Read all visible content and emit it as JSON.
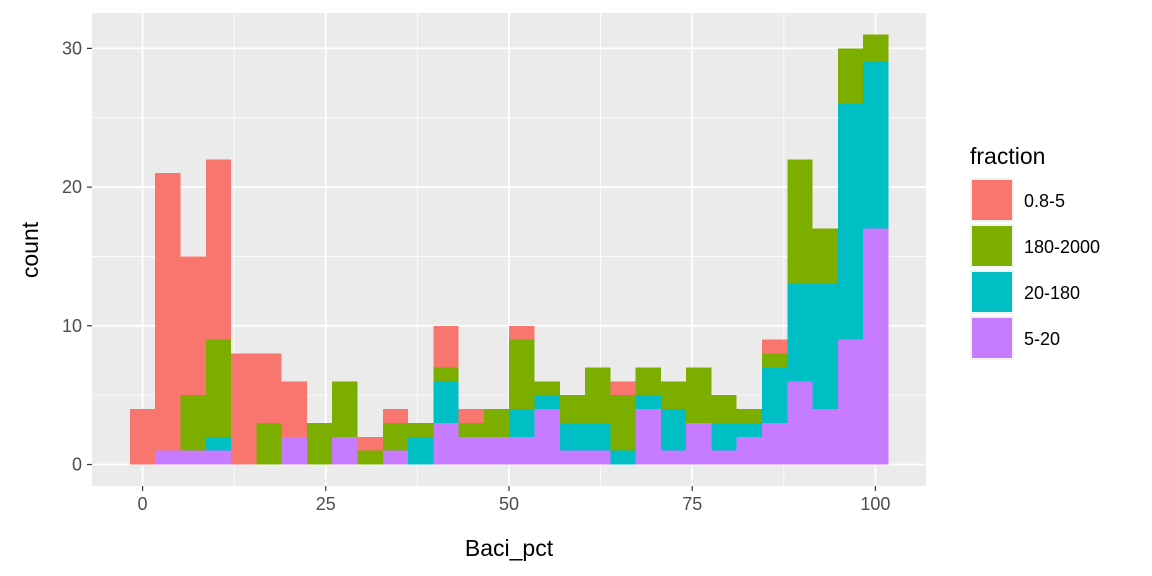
{
  "chart_data": {
    "type": "bar",
    "stacked": true,
    "xlabel": "Baci_pct",
    "ylabel": "count",
    "xlim": [
      -6.9,
      106.9
    ],
    "ylim": [
      -1.55,
      32.55
    ],
    "x_ticks": [
      0,
      25,
      50,
      75,
      100
    ],
    "y_ticks": [
      0,
      10,
      20,
      30
    ],
    "bin_width": 3.45,
    "bin_centers": [
      0,
      3.45,
      6.9,
      10.35,
      13.8,
      17.25,
      20.7,
      24.15,
      27.6,
      31.05,
      34.5,
      37.95,
      41.4,
      44.85,
      48.3,
      51.75,
      55.2,
      58.65,
      62.1,
      65.55,
      69,
      72.45,
      75.9,
      79.35,
      82.8,
      86.25,
      89.7,
      93.15,
      96.6,
      100.05
    ],
    "grid": true,
    "legend_position": "right",
    "legend_title": "fraction",
    "series": [
      {
        "name": "0.8-5",
        "color": "#F8766D",
        "values": [
          4,
          20,
          10,
          13,
          8,
          5,
          4,
          0,
          0,
          1,
          1,
          0,
          3,
          1,
          0,
          1,
          0,
          0,
          0,
          1,
          0,
          0,
          0,
          0,
          0,
          1,
          0,
          0,
          0,
          0
        ]
      },
      {
        "name": "180-2000",
        "color": "#7CAE00",
        "values": [
          0,
          0,
          4,
          7,
          0,
          3,
          0,
          3,
          4,
          1,
          2,
          1,
          1,
          1,
          2,
          5,
          1,
          2,
          4,
          4,
          2,
          2,
          4,
          2,
          1,
          1,
          9,
          4,
          4,
          2
        ]
      },
      {
        "name": "20-180",
        "color": "#00BFC4",
        "values": [
          0,
          0,
          0,
          1,
          0,
          0,
          0,
          0,
          0,
          0,
          0,
          2,
          3,
          0,
          0,
          2,
          1,
          2,
          2,
          1,
          1,
          3,
          0,
          2,
          1,
          4,
          7,
          9,
          17,
          12
        ]
      },
      {
        "name": "5-20",
        "color": "#C77CFF",
        "values": [
          0,
          1,
          1,
          1,
          0,
          0,
          2,
          0,
          2,
          0,
          1,
          0,
          3,
          2,
          2,
          2,
          4,
          1,
          1,
          0,
          4,
          1,
          3,
          1,
          2,
          3,
          6,
          4,
          9,
          17
        ]
      }
    ]
  }
}
